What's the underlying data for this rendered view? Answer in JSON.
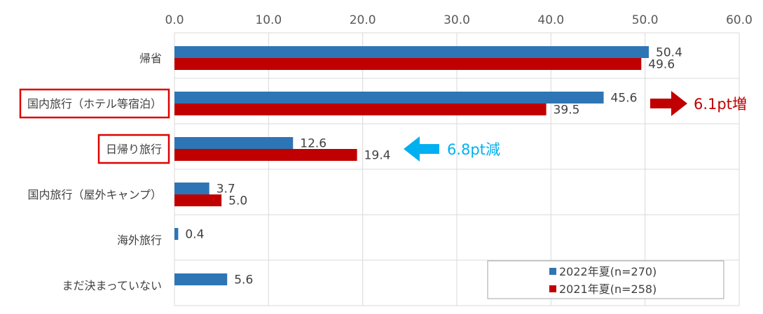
{
  "chart_data": {
    "type": "bar",
    "orientation": "horizontal",
    "categories": [
      "帰省",
      "国内旅行（ホテル等宿泊）",
      "日帰り旅行",
      "国内旅行（屋外キャンプ）",
      "海外旅行",
      "まだ決まっていない"
    ],
    "series": [
      {
        "name": "2022年夏(n=270)",
        "color": "#2e75b6",
        "values": [
          50.4,
          45.6,
          12.6,
          3.7,
          0.4,
          5.6
        ]
      },
      {
        "name": "2021年夏(n=258)",
        "color": "#c00000",
        "values": [
          49.6,
          39.5,
          19.4,
          5.0,
          null,
          null
        ]
      }
    ],
    "data_labels": [
      [
        "50.4",
        "45.6",
        "12.6",
        "3.7",
        "0.4",
        "5.6"
      ],
      [
        "49.6",
        "39.5",
        "19.4",
        "5.0",
        "",
        ""
      ]
    ],
    "xlim": [
      0,
      60
    ],
    "xticks": [
      "0.0",
      "10.0",
      "20.0",
      "30.0",
      "40.0",
      "50.0",
      "60.0"
    ],
    "x_axis_position": "top",
    "grid": true,
    "legend_position": "bottom-right",
    "highlighted_categories": [
      "国内旅行（ホテル等宿泊）",
      "日帰り旅行"
    ],
    "annotations": [
      {
        "text": "6.1pt増",
        "category": "国内旅行（ホテル等宿泊）",
        "direction": "right",
        "color": "#c00000"
      },
      {
        "text": "6.8pt減",
        "category": "日帰り旅行",
        "direction": "left",
        "color": "#00b0f0"
      }
    ]
  }
}
